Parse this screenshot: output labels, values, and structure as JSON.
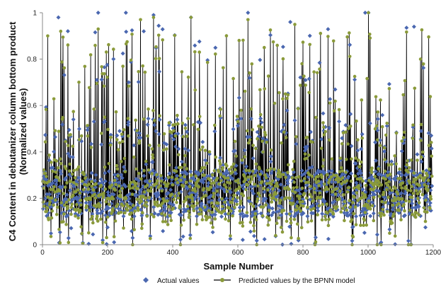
{
  "chart_data": {
    "type": "line",
    "title": "",
    "xlabel": "Sample Number",
    "ylabel": "C4 Content in debutanizer column bottom product (Normalized values)",
    "ylabel_lines": [
      "C4 Content in debutanizer column bottom product",
      "(Normalized values)"
    ],
    "xlim": [
      0,
      1200
    ],
    "ylim": [
      0,
      1.0
    ],
    "xticks": [
      "0",
      "200",
      "400",
      "600",
      "800",
      "1000",
      "1200"
    ],
    "yticks": [
      "0",
      "0.2",
      "0.4",
      "0.6",
      "0.8",
      "1"
    ],
    "grid": false,
    "legend_position": "bottom",
    "n_samples": 1196,
    "series": [
      {
        "name": "Actual values",
        "style": "markers",
        "marker": "diamond",
        "color": "#4a67b0",
        "values_note": "1196 dense samples, mostly 0.1-0.35, frequent spikes up to 1.0",
        "peaks": [
          [
            48,
            0.98
          ],
          [
            170,
            1.0
          ],
          [
            255,
            1.0
          ],
          [
            310,
            0.92
          ],
          [
            340,
            0.99
          ],
          [
            455,
            0.98
          ],
          [
            630,
            1.0
          ],
          [
            760,
            0.96
          ],
          [
            990,
            1.0
          ],
          [
            1000,
            1.0
          ],
          [
            1140,
            0.94
          ]
        ]
      },
      {
        "name": "Predicted values by the BPNN model",
        "style": "line+markers",
        "marker": "circle",
        "color": "#8a9a3a",
        "line_color": "#000000",
        "peaks": [
          [
            15,
            0.9
          ],
          [
            55,
            0.92
          ],
          [
            170,
            0.93
          ],
          [
            300,
            0.97
          ],
          [
            340,
            0.98
          ],
          [
            455,
            0.98
          ],
          [
            630,
            0.97
          ],
          [
            680,
            0.85
          ],
          [
            1000,
            1.0
          ],
          [
            1160,
            0.8
          ]
        ]
      }
    ]
  }
}
